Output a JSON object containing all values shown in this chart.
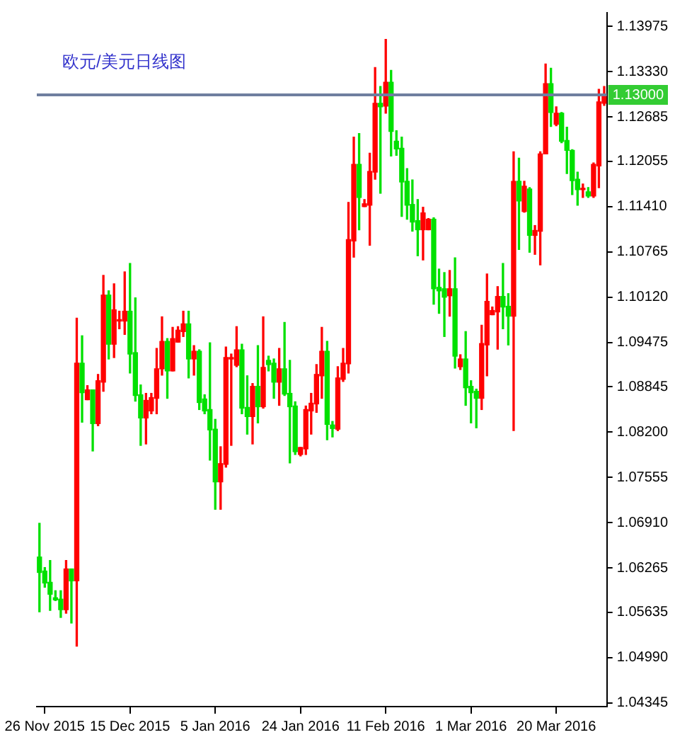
{
  "chart_data": {
    "type": "candlestick",
    "title": "欧元/美元日线图",
    "categories": [
      null,
      "26 Nov 2015",
      null,
      null,
      null,
      null,
      null,
      null,
      null,
      null,
      null,
      null,
      null,
      null,
      null,
      null,
      null,
      "15 Dec 2015",
      null,
      null,
      null,
      null,
      null,
      null,
      null,
      null,
      null,
      null,
      null,
      null,
      null,
      null,
      null,
      "5 Jan 2016",
      null,
      null,
      null,
      null,
      null,
      null,
      null,
      null,
      null,
      null,
      null,
      null,
      null,
      null,
      null,
      "24 Jan 2016",
      null,
      null,
      null,
      null,
      null,
      null,
      null,
      null,
      null,
      null,
      null,
      null,
      null,
      null,
      null,
      "11 Feb 2016",
      null,
      null,
      null,
      null,
      null,
      null,
      null,
      null,
      null,
      null,
      null,
      null,
      null,
      null,
      null,
      "1 Mar 2016",
      null,
      null,
      null,
      null,
      null,
      null,
      null,
      null,
      null,
      null,
      null,
      null,
      null,
      null,
      null,
      "20 Mar 2016",
      null,
      null,
      null,
      null,
      null,
      null,
      null,
      null,
      null
    ],
    "ohlc": [
      [
        1.0642,
        1.069,
        1.0564,
        1.062
      ],
      [
        1.0622,
        1.0627,
        1.0599,
        1.0605
      ],
      [
        1.0606,
        1.0637,
        1.0566,
        1.0589
      ],
      [
        1.0584,
        1.0594,
        1.058,
        1.0581
      ],
      [
        1.0582,
        1.0594,
        1.0556,
        1.0567
      ],
      [
        1.0567,
        1.0637,
        1.0562,
        1.0625
      ],
      [
        1.0625,
        1.0625,
        1.0548,
        1.0608
      ],
      [
        1.0608,
        1.0982,
        1.0515,
        1.0918
      ],
      [
        1.0918,
        1.0957,
        1.0834,
        1.0876
      ],
      [
        1.0866,
        1.0886,
        1.0866,
        1.088
      ],
      [
        1.088,
        1.088,
        1.0793,
        1.0832
      ],
      [
        1.0832,
        1.0902,
        1.0829,
        1.0893
      ],
      [
        1.0891,
        1.1043,
        1.0878,
        1.1015
      ],
      [
        1.1015,
        1.1021,
        1.0924,
        1.0945
      ],
      [
        1.0945,
        1.1031,
        1.0926,
        1.0994
      ],
      [
        1.0978,
        1.0992,
        1.0967,
        1.098
      ],
      [
        1.0978,
        1.1048,
        1.0959,
        1.0992
      ],
      [
        1.0992,
        1.106,
        1.0904,
        1.0931
      ],
      [
        1.0933,
        1.1011,
        1.0864,
        1.0872
      ],
      [
        1.0873,
        1.0887,
        1.0801,
        1.084
      ],
      [
        1.084,
        1.0875,
        1.0803,
        1.0865
      ],
      [
        1.085,
        1.0875,
        1.0846,
        1.0869
      ],
      [
        1.0868,
        1.0939,
        1.0846,
        1.091
      ],
      [
        1.091,
        1.0984,
        1.0901,
        1.0949
      ],
      [
        1.0949,
        1.0953,
        1.0868,
        1.0907
      ],
      [
        1.0907,
        1.0969,
        1.0907,
        1.0953
      ],
      [
        1.0948,
        1.097,
        1.0948,
        1.0965
      ],
      [
        1.0963,
        1.0992,
        1.0956,
        1.0974
      ],
      [
        1.0974,
        1.0992,
        1.0897,
        1.0924
      ],
      [
        1.0924,
        1.0943,
        1.0901,
        1.0935
      ],
      [
        1.0935,
        1.0937,
        1.0852,
        1.0862
      ],
      [
        1.0867,
        1.0873,
        1.0846,
        1.085
      ],
      [
        1.0852,
        1.0947,
        1.078,
        1.0823
      ],
      [
        1.0824,
        1.0838,
        1.071,
        1.0749
      ],
      [
        1.0749,
        1.0799,
        1.071,
        1.0775
      ],
      [
        1.0774,
        1.0941,
        1.077,
        1.0926
      ],
      [
        1.0924,
        1.0931,
        1.0801,
        1.0926
      ],
      [
        1.0915,
        1.097,
        1.0913,
        1.0937
      ],
      [
        1.0937,
        1.0945,
        1.0846,
        1.0854
      ],
      [
        1.0855,
        1.09,
        1.0817,
        1.0842
      ],
      [
        1.0842,
        1.0889,
        1.0803,
        1.0885
      ],
      [
        1.0885,
        1.0943,
        1.0833,
        1.0856
      ],
      [
        1.0856,
        1.0984,
        1.0854,
        1.0912
      ],
      [
        1.0922,
        1.0928,
        1.0907,
        1.0916
      ],
      [
        1.0918,
        1.0924,
        1.0868,
        1.0891
      ],
      [
        1.0891,
        1.0939,
        1.0858,
        1.091
      ],
      [
        1.091,
        1.0976,
        1.0872,
        1.0874
      ],
      [
        1.0875,
        1.0922,
        1.0776,
        1.0856
      ],
      [
        1.0857,
        1.0863,
        1.0788,
        1.0792
      ],
      [
        1.0788,
        1.0798,
        1.0786,
        1.0798
      ],
      [
        1.0796,
        1.0857,
        1.0788,
        1.0852
      ],
      [
        1.085,
        1.0875,
        1.0817,
        1.0861
      ],
      [
        1.086,
        1.0916,
        1.0848,
        1.0902
      ],
      [
        1.09,
        1.0969,
        1.0868,
        1.0935
      ],
      [
        1.0935,
        1.0949,
        1.0809,
        1.0831
      ],
      [
        1.083,
        1.0835,
        1.0813,
        1.0825
      ],
      [
        1.0824,
        1.0913,
        1.0822,
        1.0897
      ],
      [
        1.0895,
        1.0939,
        1.0892,
        1.0918
      ],
      [
        1.0917,
        1.1147,
        1.0904,
        1.1094
      ],
      [
        1.1092,
        1.124,
        1.1069,
        1.1201
      ],
      [
        1.1201,
        1.1245,
        1.1108,
        1.1154
      ],
      [
        1.1141,
        1.1151,
        1.1141,
        1.1145
      ],
      [
        1.1143,
        1.1217,
        1.1086,
        1.1191
      ],
      [
        1.119,
        1.1339,
        1.118,
        1.1288
      ],
      [
        1.1288,
        1.1312,
        1.116,
        1.1283
      ],
      [
        1.1284,
        1.1379,
        1.1274,
        1.1318
      ],
      [
        1.1318,
        1.1335,
        1.1213,
        1.1248
      ],
      [
        1.1234,
        1.1249,
        1.1214,
        1.1223
      ],
      [
        1.1224,
        1.124,
        1.1127,
        1.1176
      ],
      [
        1.1177,
        1.1195,
        1.1123,
        1.1143
      ],
      [
        1.1144,
        1.1179,
        1.1106,
        1.1119
      ],
      [
        1.1121,
        1.1151,
        1.1071,
        1.1108
      ],
      [
        1.1108,
        1.114,
        1.1065,
        1.1132
      ],
      [
        1.1108,
        1.1124,
        1.1108,
        1.1123
      ],
      [
        1.1123,
        1.1125,
        1.1002,
        1.1024
      ],
      [
        1.1026,
        1.1052,
        1.0989,
        1.1021
      ],
      [
        1.1024,
        1.1047,
        1.0956,
        1.1012
      ],
      [
        1.1014,
        1.105,
        1.0985,
        1.1024
      ],
      [
        1.1024,
        1.1068,
        1.0911,
        1.0928
      ],
      [
        1.0913,
        1.093,
        1.0909,
        1.0924
      ],
      [
        1.0924,
        1.0963,
        1.0858,
        1.0883
      ],
      [
        1.0885,
        1.0893,
        1.0833,
        1.0876
      ],
      [
        1.0878,
        1.0881,
        1.0826,
        1.0868
      ],
      [
        1.0868,
        1.0972,
        1.0852,
        1.0946
      ],
      [
        1.0944,
        1.1045,
        1.09,
        1.1006
      ],
      [
        1.0987,
        1.0998,
        1.0987,
        1.0993
      ],
      [
        1.0991,
        1.1027,
        1.0938,
        1.1013
      ],
      [
        1.1013,
        1.106,
        1.0967,
        1.0998
      ],
      [
        1.0999,
        1.1017,
        1.0944,
        1.0985
      ],
      [
        1.0985,
        1.1219,
        1.0822,
        1.1177
      ],
      [
        1.1177,
        1.121,
        1.108,
        1.1149
      ],
      [
        1.1134,
        1.1177,
        1.1133,
        1.117
      ],
      [
        1.1166,
        1.1168,
        1.1076,
        1.11
      ],
      [
        1.11,
        1.1114,
        1.1073,
        1.1107
      ],
      [
        1.1106,
        1.1219,
        1.1058,
        1.1216
      ],
      [
        1.1216,
        1.1344,
        1.1216,
        1.1316
      ],
      [
        1.1316,
        1.1338,
        1.1255,
        1.1275
      ],
      [
        1.1258,
        1.1283,
        1.1256,
        1.1274
      ],
      [
        1.1274,
        1.1275,
        1.1232,
        1.1234
      ],
      [
        1.1235,
        1.1254,
        1.1188,
        1.1221
      ],
      [
        1.1221,
        1.1222,
        1.1158,
        1.1178
      ],
      [
        1.118,
        1.119,
        1.1143,
        1.1165
      ],
      [
        1.1165,
        1.1173,
        1.1154,
        1.1166
      ],
      [
        1.1162,
        1.1168,
        1.1154,
        1.1156
      ],
      [
        1.1156,
        1.1203,
        1.1154,
        1.1201
      ],
      [
        1.1199,
        1.1308,
        1.1168,
        1.129
      ],
      [
        1.1288,
        1.1312,
        1.1285,
        1.13
      ]
    ],
    "colors": [
      "#00e000",
      "#00e000",
      "#00e000",
      "#00e000",
      "#00e000",
      "#ff0000",
      "#00e000",
      "#ff0000",
      "#00e000",
      "#ff0000",
      "#00e000",
      "#ff0000",
      "#ff0000",
      "#00e000",
      "#ff0000",
      "#ff0000",
      "#ff0000",
      "#00e000",
      "#00e000",
      "#00e000",
      "#ff0000",
      "#ff0000",
      "#ff0000",
      "#ff0000",
      "#00e000",
      "#ff0000",
      "#ff0000",
      "#ff0000",
      "#00e000",
      "#ff0000",
      "#00e000",
      "#00e000",
      "#00e000",
      "#00e000",
      "#ff0000",
      "#ff0000",
      "#ff0000",
      "#ff0000",
      "#00e000",
      "#00e000",
      "#ff0000",
      "#00e000",
      "#ff0000",
      "#00e000",
      "#00e000",
      "#ff0000",
      "#00e000",
      "#00e000",
      "#00e000",
      "#ff0000",
      "#ff0000",
      "#ff0000",
      "#ff0000",
      "#ff0000",
      "#00e000",
      "#00e000",
      "#ff0000",
      "#ff0000",
      "#ff0000",
      "#ff0000",
      "#00e000",
      "#ff0000",
      "#ff0000",
      "#ff0000",
      "#00e000",
      "#ff0000",
      "#00e000",
      "#00e000",
      "#00e000",
      "#00e000",
      "#00e000",
      "#00e000",
      "#ff0000",
      "#ff0000",
      "#00e000",
      "#00e000",
      "#00e000",
      "#ff0000",
      "#00e000",
      "#ff0000",
      "#00e000",
      "#00e000",
      "#00e000",
      "#ff0000",
      "#ff0000",
      "#ff0000",
      "#ff0000",
      "#00e000",
      "#00e000",
      "#ff0000",
      "#00e000",
      "#ff0000",
      "#00e000",
      "#ff0000",
      "#ff0000",
      "#ff0000",
      "#00e000",
      "#ff0000",
      "#00e000",
      "#00e000",
      "#00e000",
      "#00e000",
      "#ff0000",
      "#00e000",
      "#ff0000",
      "#ff0000",
      "#ff0000"
    ],
    "ylim": [
      1.0429,
      1.1417
    ],
    "yticks": [
      {
        "value": 1.13975,
        "label": "1.13975"
      },
      {
        "value": 1.1333,
        "label": "1.13330"
      },
      {
        "value": 1.12685,
        "label": "1.12685"
      },
      {
        "value": 1.12055,
        "label": "1.12055"
      },
      {
        "value": 1.1141,
        "label": "1.11410"
      },
      {
        "value": 1.10765,
        "label": "1.10765"
      },
      {
        "value": 1.1012,
        "label": "1.10120"
      },
      {
        "value": 1.09475,
        "label": "1.09475"
      },
      {
        "value": 1.08845,
        "label": "1.08845"
      },
      {
        "value": 1.082,
        "label": "1.08200"
      },
      {
        "value": 1.07555,
        "label": "1.07555"
      },
      {
        "value": 1.0691,
        "label": "1.06910"
      },
      {
        "value": 1.06265,
        "label": "1.06265"
      },
      {
        "value": 1.05635,
        "label": "1.05635"
      },
      {
        "value": 1.0499,
        "label": "1.04990"
      },
      {
        "value": 1.04345,
        "label": "1.04345"
      }
    ],
    "ref_lines": [
      {
        "axis": "y",
        "value": 1.13,
        "label": "1.13000",
        "color": "#6f7f9f"
      }
    ]
  }
}
